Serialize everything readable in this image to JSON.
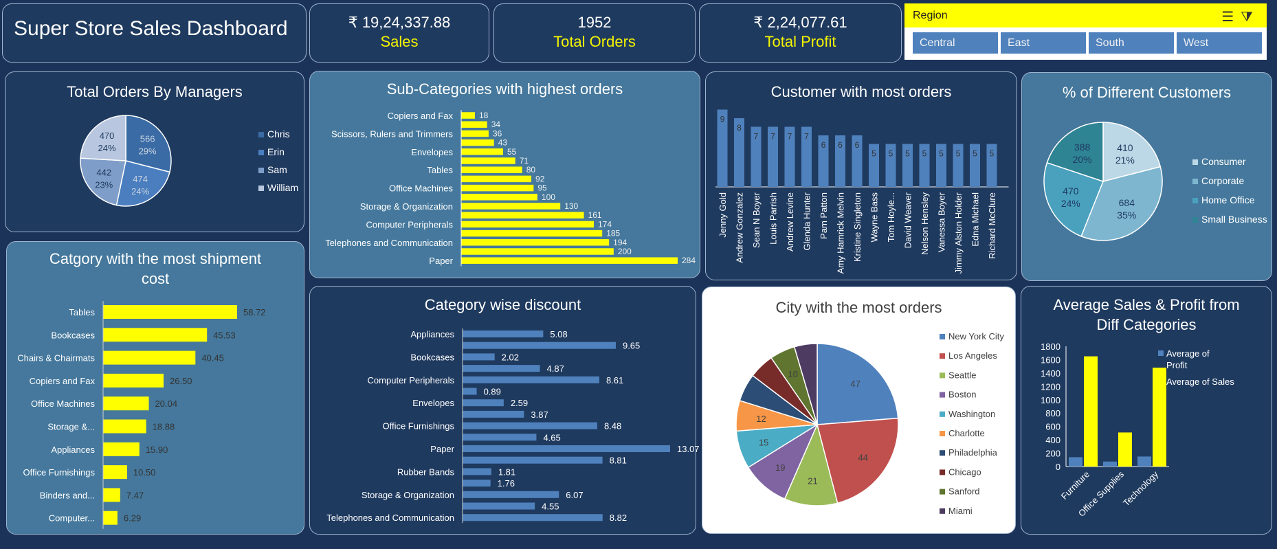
{
  "header": {
    "title": "Super Store Sales Dashboard"
  },
  "kpis": [
    {
      "value": "₹ 19,24,337.88",
      "label": "Sales"
    },
    {
      "value": "1952",
      "label": "Total Orders"
    },
    {
      "value": "₹ 2,24,077.61",
      "label": "Total Profit"
    }
  ],
  "slicer": {
    "title": "Region",
    "options": [
      "Central",
      "East",
      "South",
      "West"
    ]
  },
  "colors": {
    "background": "#1b3358",
    "yellow": "#ffff00",
    "blue": "#4f81bd"
  },
  "chart_data": [
    {
      "id": "managers",
      "type": "pie",
      "title": "Total Orders By Managers",
      "labels": [
        "Chris",
        "Erin",
        "Sam",
        "William"
      ],
      "values": [
        566,
        474,
        442,
        470
      ],
      "percent_labels": [
        "29%",
        "24%",
        "23%",
        "24%"
      ],
      "colors": [
        "#3a6ba5",
        "#4a7ebf",
        "#7f9dc9",
        "#b8c7df"
      ],
      "legend": "right"
    },
    {
      "id": "subcategories",
      "type": "bar",
      "orientation": "horizontal",
      "title": "Sub-Categories with highest orders",
      "tick_labels": [
        "Copiers and Fax",
        "Scissors, Rulers and Trimmers",
        "Envelopes",
        "Tables",
        "Office Machines",
        "Storage & Organization",
        "Computer Peripherals",
        "Telephones and Communication",
        "Paper"
      ],
      "values": [
        18,
        34,
        36,
        43,
        55,
        71,
        80,
        92,
        95,
        100,
        130,
        161,
        174,
        185,
        194,
        200,
        284
      ],
      "color": "#ffff00"
    },
    {
      "id": "customers",
      "type": "bar",
      "title": "Customer with most orders",
      "categories": [
        "Jenny Gold",
        "Andrew Gonzalez",
        "Sean N Boyer",
        "Louis Parrish",
        "Andrew Levine",
        "Glenda Hunter",
        "Pam Patton",
        "Amy Hamrick Melvin",
        "Kristine Singleton",
        "Wayne Bass",
        "Tom Hoyle...",
        "David Weaver",
        "Nelson Hensley",
        "Vanessa Boyer",
        "Jimmy Alston Holder",
        "Edna Michael",
        "Richard McClure"
      ],
      "values": [
        9,
        8,
        7,
        7,
        7,
        7,
        6,
        6,
        6,
        5,
        5,
        5,
        5,
        5,
        5,
        5,
        5
      ],
      "color": "#4f81bd"
    },
    {
      "id": "segments",
      "type": "pie",
      "title": "% of Different Customers",
      "labels": [
        "Consumer",
        "Corporate",
        "Home Office",
        "Small Business"
      ],
      "values": [
        410,
        684,
        470,
        388
      ],
      "percent_labels": [
        "21%",
        "35%",
        "24%",
        "20%"
      ],
      "colors": [
        "#bcd7e6",
        "#7eb6d0",
        "#4aa1be",
        "#2f8494"
      ],
      "legend": "right"
    },
    {
      "id": "shipment",
      "type": "bar",
      "orientation": "horizontal",
      "title": "Catgory with the most shipment cost",
      "categories": [
        "Tables",
        "Bookcases",
        "Chairs & Chairmats",
        "Copiers and Fax",
        "Office Machines",
        "Storage &...",
        "Appliances",
        "Office Furnishings",
        "Binders and...",
        "Computer..."
      ],
      "values": [
        58.72,
        45.53,
        40.45,
        26.5,
        20.04,
        18.88,
        15.9,
        10.5,
        7.47,
        6.29
      ],
      "value_labels": [
        "58.72",
        "45.53",
        "40.45",
        "26.50",
        "20.04",
        "18.88",
        "15.90",
        "10.50",
        "7.47",
        "6.29"
      ],
      "color": "#ffff00"
    },
    {
      "id": "discount",
      "type": "bar",
      "orientation": "horizontal",
      "title": "Category wise discount",
      "tick_labels": [
        "Appliances",
        "Bookcases",
        "Computer Peripherals",
        "Envelopes",
        "Office Furnishings",
        "Paper",
        "Rubber Bands",
        "Storage & Organization",
        "Telephones and Communication"
      ],
      "values": [
        5.08,
        9.65,
        2.02,
        4.87,
        8.61,
        0.89,
        2.59,
        3.87,
        8.48,
        4.65,
        13.07,
        8.81,
        1.81,
        1.76,
        6.07,
        4.55,
        8.82
      ],
      "color": "#4f81bd"
    },
    {
      "id": "cities",
      "type": "pie",
      "title": "City with the most orders",
      "labels": [
        "New York City",
        "Los Angeles",
        "Seattle",
        "Boston",
        "Washington",
        "Charlotte",
        "Philadelphia",
        "Chicago",
        "Sanford",
        "Miami"
      ],
      "values": [
        47,
        44,
        21,
        19,
        15,
        12,
        11,
        10,
        10,
        9
      ],
      "value_labels": [
        "47",
        "44",
        "21",
        "19",
        "15",
        "12",
        "",
        "",
        "10",
        ""
      ],
      "colors": [
        "#4f81bd",
        "#c0504d",
        "#9bbb59",
        "#8064a2",
        "#4bacc6",
        "#f79646",
        "#2c4d75",
        "#772c2a",
        "#5f7530",
        "#4d3b62"
      ],
      "legend": "right"
    },
    {
      "id": "avg",
      "type": "bar",
      "title": "Average Sales & Profit from Diff Categories",
      "categories": [
        "Furniture",
        "Office Supplies",
        "Technology"
      ],
      "series": [
        {
          "name": "Average of Profit",
          "values": [
            140,
            75,
            150
          ],
          "color": "#4f81bd"
        },
        {
          "name": "Average of Sales",
          "values": [
            1650,
            510,
            1480
          ],
          "color": "#ffff00"
        }
      ],
      "ylim": [
        0,
        1800
      ],
      "yticks": [
        "0",
        "200",
        "400",
        "600",
        "800",
        "1000",
        "1200",
        "1400",
        "1600",
        "1800"
      ],
      "legend": "right"
    }
  ]
}
